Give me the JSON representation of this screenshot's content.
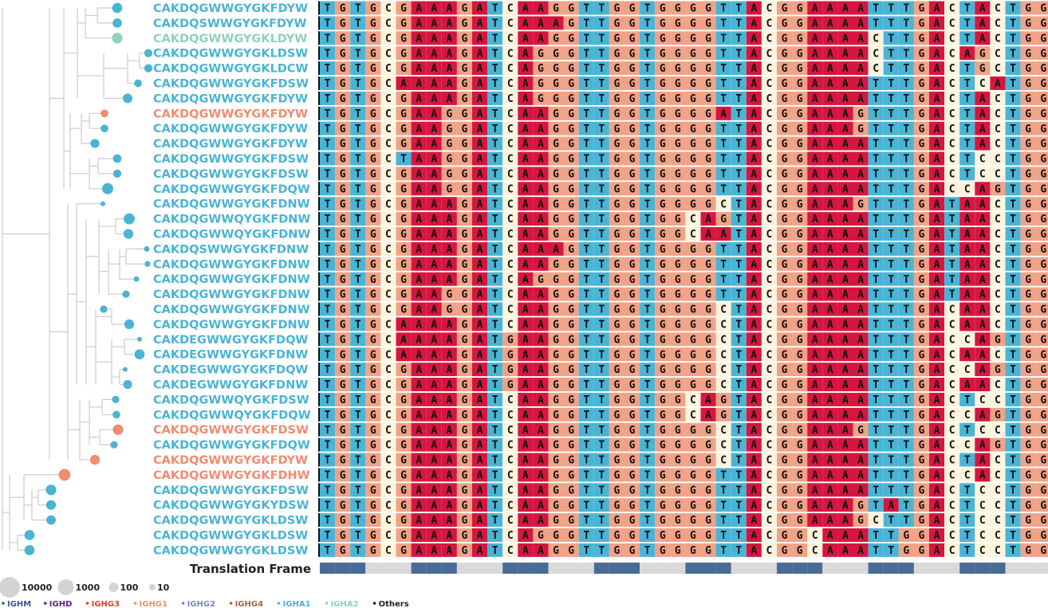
{
  "colors": {
    "IGHA1": "#4ab4d3",
    "IGHG1": "#f08c70",
    "IGHA2": "#8ed1bf",
    "tree": "#cccccc",
    "frame_on": "#4a6b96",
    "frame_off": "#d9d9d9",
    "nt": {
      "A": "#d7163f",
      "G": "#f1a287",
      "T": "#49b5d6",
      "C": "#fdf4dd"
    }
  },
  "chart_data": {
    "type": "table",
    "title": "",
    "sequences": [
      {
        "cdr3": "CAKDQGWWGYGKFDYW",
        "isotype": "IGHA1",
        "size": 120,
        "nt": "TGTGCGAAAGATCAAGGTTGGTGGGGTTACGGAAAATTTGACTACTGG"
      },
      {
        "cdr3": "CAKDQSWWGYGKFDYW",
        "isotype": "IGHA1",
        "size": 80,
        "nt": "TGTGCGAAAGATCAAAGTTGGTGGGGTTACGGAAAATTTGACTACTGG"
      },
      {
        "cdr3": "CAKDQGWWGYGKLDYW",
        "isotype": "IGHA2",
        "size": 160,
        "nt": "TGTGCGAAAGATCAAGGTTGGTGGGGTTACGGAAAACTTGACTACTGG"
      },
      {
        "cdr3": "CAKDQGWWGYGKLDSW",
        "isotype": "IGHA1",
        "size": 40,
        "nt": "TGTGCGAAAGATCAGGGTTGGTGGGGTTACGGAAAACTTGACAGCTGG"
      },
      {
        "cdr3": "CAKDQGWWGYGKLDCW",
        "isotype": "IGHA1",
        "size": 40,
        "nt": "TGTGCGAAAGATCAGGGTTGGTGGGGTTACGGAAAACTTGACTGCTGG"
      },
      {
        "cdr3": "CAKDQGWWGYGKFDSW",
        "isotype": "IGHA1",
        "size": 30,
        "nt": "TGTGCAAAAGATCAGGGTTGGTGGGGTTACGGAAAATTTGACTCATGG"
      },
      {
        "cdr3": "CAKDQGWWGYGKFDYW",
        "isotype": "IGHA1",
        "size": 90,
        "nt": "TGTGCGAAAGATCAGGGTTGGTGGGGTTACGGAAAATTTGACTACTGG"
      },
      {
        "cdr3": "CAKDQGWWGYGKFDYW",
        "isotype": "IGHG1",
        "size": 30,
        "nt": "TGTGCGAAGGATCAAGGTTGGTGGGGATACGGAAAGTTTGACTACTGG"
      },
      {
        "cdr3": "CAKDQGWWGYGKFDYW",
        "isotype": "IGHA1",
        "size": 30,
        "nt": "TGTGCGAAGGATCAAGGTTGGTGGGGTTACGGAAAGTTTGACTACTGG"
      },
      {
        "cdr3": "CAKDQGWWGYGKFDYW",
        "isotype": "IGHA1",
        "size": 60,
        "nt": "TGTGCGAAGGATCAAGGTTGGTGGGGTTACGGAAAATTTGACTACTGG"
      },
      {
        "cdr3": "CAKDQGWWGYGKFDSW",
        "isotype": "IGHA1",
        "size": 50,
        "nt": "TGTGCTAAGGATCAAGGTTGGTGGGGTTACGGAAAATTTGACTCCTGG"
      },
      {
        "cdr3": "CAKDQGWWGYGKFDSW",
        "isotype": "IGHA1",
        "size": 40,
        "nt": "TGTGCGAAGGATCAAGGTTGGTGGGGTTACGGAAAATTTGACTCCTGG"
      },
      {
        "cdr3": "CAKDQGWWGYGKFDQW",
        "isotype": "IGHA1",
        "size": 220,
        "nt": "TGTGCGAAGGATCAAGGTTGGTGGGGTTACGGAAAATTTGACCAGTGG"
      },
      {
        "cdr3": "CAKDQGWWGYGKFDNW",
        "isotype": "IGHA1",
        "size": 5,
        "nt": "TGTGCGAAAGATCAAGGTTGGTGGGGCTACGGAAAGTTTGATAACTGG"
      },
      {
        "cdr3": "CAKDQGWWQYGKFDNW",
        "isotype": "IGHA1",
        "size": 200,
        "nt": "TGTGCGAAAGATCAAGGTTGGTGGCAGTACGGAAAATTTGATAACTGG"
      },
      {
        "cdr3": "CAKDQGWWQYGKFDNW",
        "isotype": "IGHA1",
        "size": 100,
        "nt": "TGTGCGAAAGATCAAGGTTGGTGGCAATACGGAAAATTTGATAACTGG"
      },
      {
        "cdr3": "CAKDQSWWGYGKFDNW",
        "isotype": "IGHA1",
        "size": 8,
        "nt": "TGTGCGAAAGATCAAAGTTGGTGGGGTTACGGAAAATTTGATAACTGG"
      },
      {
        "cdr3": "CAKDQGWWGYGKFDNW",
        "isotype": "IGHA1",
        "size": 10,
        "nt": "TGTGCGAAAGATCAAGGTTGGTGGGGTTACGGAAAATTTGATAACTGG"
      },
      {
        "cdr3": "CAKDQGWWGYGKFDNW",
        "isotype": "IGHA1",
        "size": 8,
        "nt": "TGTGCGAAAGATCAGGGTTGGTGGGGTTACGGAAAATTTGATAACTGG"
      },
      {
        "cdr3": "CAKDQGWWGYGKFDNW",
        "isotype": "IGHA1",
        "size": 25,
        "nt": "TGTGCGAAGGATCAAGGTTGGTGGGGTTACGGAAAATTTGATAACTGG"
      },
      {
        "cdr3": "CAKDQGWWGYGKFDNW",
        "isotype": "IGHA1",
        "size": 25,
        "nt": "TGTGCGAAGGATCAAGGTTGGTGGGGCTACGGAAAATTTGACAACTGG"
      },
      {
        "cdr3": "CAKDQGWWGYGKFDNW",
        "isotype": "IGHA1",
        "size": 100,
        "nt": "TGTGCAAAAGATCAAGGTTGGTGGGGCTACGGAAAATTTGACAACTGG"
      },
      {
        "cdr3": "CAKDEGWWGYGKFDQW",
        "isotype": "IGHA1",
        "size": 5,
        "nt": "TGTGCAAAAGATGAAGGTTGGTGGGGCTACGGAAAATTTGACCAGTGG"
      },
      {
        "cdr3": "CAKDEGWWGYGKFDNW",
        "isotype": "IGHA1",
        "size": 120,
        "nt": "TGTGCAAAAGATGAAGGTTGGTGGGGCTACGGAAAATTTGACAACTGG"
      },
      {
        "cdr3": "CAKDEGWWGYGKFDQW",
        "isotype": "IGHA1",
        "size": 5,
        "nt": "TGTGCGAAAGATGAAGGTTGGTGGGGCTACGGAAAATTTGACCAGTGG"
      },
      {
        "cdr3": "CAKDEGWWGYGKFDNW",
        "isotype": "IGHA1",
        "size": 60,
        "nt": "TGTGCGAAAGATGAAGGTTGGTGGGGCTACGGAAAATTTGACAACTGG"
      },
      {
        "cdr3": "CAKDQGWWQYGKFDSW",
        "isotype": "IGHA1",
        "size": 25,
        "nt": "TGTGCGAAAGATCAAGGTTGGTGGCAGTACGGAAAATTTGACTCCTGG"
      },
      {
        "cdr3": "CAKDQGWWQYGKFDQW",
        "isotype": "IGHA1",
        "size": 30,
        "nt": "TGTGCGAAAGATCAAGGTTGGTGGCAGTACGGAAAATTTGACCAGTGG"
      },
      {
        "cdr3": "CAKDQGWWGYGKFDSW",
        "isotype": "IGHG1",
        "size": 150,
        "nt": "TGTGCGAAAGATCAAGGTTGGTGGGGCTACGGAAAGTTTGACTCCTGG"
      },
      {
        "cdr3": "CAKDQGWWGYGKFDQW",
        "isotype": "IGHA1",
        "size": 25,
        "nt": "TGTGCGAAAGATCAAGGTTGGTGGGGCTACGGAAAATTTGACCAGTGG"
      },
      {
        "cdr3": "CAKDQGWWGYGKFDYW",
        "isotype": "IGHG1",
        "size": 100,
        "nt": "TGTGCGAAAGATCAAGGTTGGTGGGGCTACGGAAAATTTGACTACTGG"
      },
      {
        "cdr3": "CAKDQGWWGYGKFDHW",
        "isotype": "IGHG1",
        "size": 300,
        "nt": "TGTGCGAAAGATCAAGGTTGGTGGGGTTACGGAAAATTTGACCACTGG"
      },
      {
        "cdr3": "CAKDQGWWGYGKFDSW",
        "isotype": "IGHA1",
        "size": 150,
        "nt": "TGTGCGAAAGATCAAGGTTGGTGGGGTTACGGAAAATTTGACTCCTGG"
      },
      {
        "cdr3": "CAKDQGWWGYGKYDSW",
        "isotype": "IGHA1",
        "size": 100,
        "nt": "TGTGCGAAAGATCAAGGTTGGTGGGGTTACGGAAAGTATGACTCCTGG"
      },
      {
        "cdr3": "CAKDQGWWGYGKLDSW",
        "isotype": "IGHA1",
        "size": 80,
        "nt": "TGTGCGAAAGATCAAGGTTGGTGGGGTTACGGAAAGCTTGACTCCTGG"
      },
      {
        "cdr3": "CAKDQGWWGYGKLDSW",
        "isotype": "IGHA1",
        "size": 120,
        "nt": "TGTGCGAAAGATCAGGGTTGGTGGGGTTACGGCAAATTGGACTCCTGG"
      },
      {
        "cdr3": "CAKDQGWWGYGKLDSW",
        "isotype": "IGHA1",
        "size": 120,
        "nt": "TGTGCGAAAGATCAAGGTTGGTGGGGTTACGGCAAATTGGACTCCTGG"
      }
    ],
    "translation_frame_label": "Translation Frame",
    "translation_frame": [
      1,
      1,
      1,
      0,
      0,
      0,
      1,
      1,
      1,
      0,
      0,
      0,
      1,
      1,
      1,
      0,
      0,
      0,
      1,
      1,
      1,
      0,
      0,
      0,
      1,
      1,
      1,
      0,
      0,
      0,
      1,
      1,
      1,
      0,
      0,
      0,
      1,
      1,
      1,
      0,
      0,
      0,
      1,
      1,
      1,
      0,
      0,
      0
    ],
    "size_legend": [
      {
        "label": "10000",
        "value": 10000
      },
      {
        "label": "1000",
        "value": 1000
      },
      {
        "label": "100",
        "value": 100
      },
      {
        "label": "10",
        "value": 10
      }
    ],
    "isotype_legend": [
      {
        "label": "IGHM",
        "color": "#3b5a8a"
      },
      {
        "label": "IGHD",
        "color": "#5e1f8c"
      },
      {
        "label": "IGHG3",
        "color": "#e2402c"
      },
      {
        "label": "IGHG1",
        "color": "#f08c70"
      },
      {
        "label": "IGHG2",
        "color": "#7a89b5"
      },
      {
        "label": "IGHG4",
        "color": "#9b6a4a"
      },
      {
        "label": "IGHA1",
        "color": "#4ab4d3"
      },
      {
        "label": "IGHA2",
        "color": "#8ed1bf"
      },
      {
        "label": "Others",
        "color": "#222222"
      }
    ]
  }
}
